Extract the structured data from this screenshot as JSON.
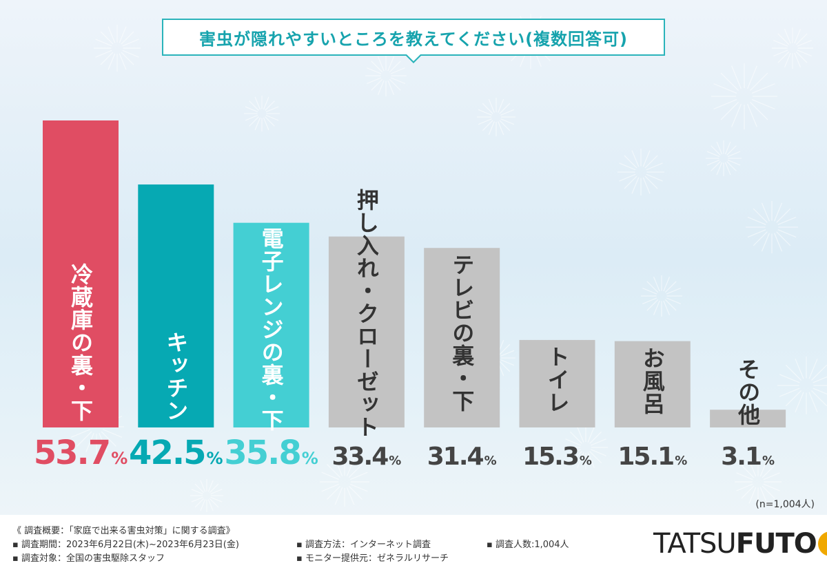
{
  "chart_data": {
    "type": "bar",
    "title": "害虫が隠れやすいところを教えてください(複数回答可)",
    "categories": [
      "冷蔵庫の裏・下",
      "キッチン",
      "電子レンジの裏・下",
      "押し入れ・クローゼット",
      "テレビの裏・下",
      "トイレ",
      "お風呂",
      "その他"
    ],
    "values": [
      53.7,
      42.5,
      35.8,
      33.4,
      31.4,
      15.3,
      15.1,
      3.1
    ],
    "unit": "%",
    "value_labels": [
      "53.7",
      "42.5",
      "35.8",
      "33.4",
      "31.4",
      "15.3",
      "15.1",
      "3.1"
    ],
    "colors": [
      "#e04d63",
      "#06a9b3",
      "#44cfd3",
      "#c3c3c3",
      "#c3c3c3",
      "#c3c3c3",
      "#c3c3c3",
      "#c3c3c3"
    ],
    "label_colors": [
      "#ffffff",
      "#ffffff",
      "#ffffff",
      "#333333",
      "#333333",
      "#333333",
      "#333333",
      "#333333"
    ],
    "value_colors": [
      "#e04d63",
      "#06a9b3",
      "#44cfd3",
      "#444444",
      "#444444",
      "#444444",
      "#444444",
      "#444444"
    ],
    "ylim": [
      0,
      60
    ],
    "grid": false,
    "legend": "none",
    "sample_size": "(n=1,004人)"
  },
  "footer": {
    "line1": "《 調査概要：「家庭で出来る害虫対策」に関する調査》",
    "line2": "▪ 調査期間：2023年6月22日(木)~2023年6月23日(金)",
    "line3": "▪ 調査対象：全国の害虫駆除スタッフ",
    "line4": "▪ 調査方法：インターネット調査",
    "line5": "▪ モニター提供元：ゼネラルリサーチ",
    "line6": "▪ 調査人数:1,004人"
  },
  "logo": {
    "part1": "TATSU",
    "part2": "FUTO"
  }
}
